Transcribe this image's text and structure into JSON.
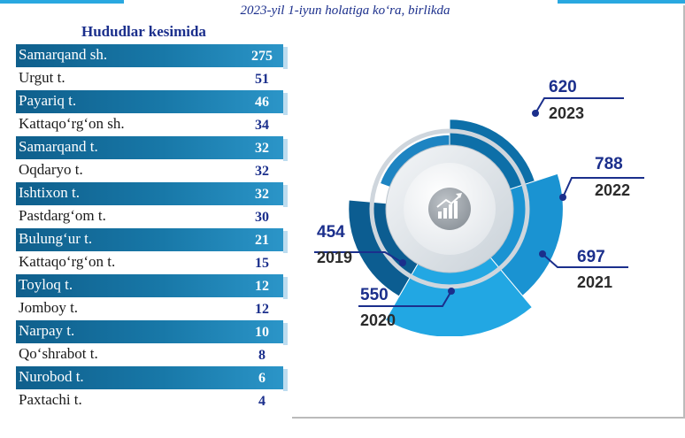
{
  "header": {
    "subtitle": "2023-yil 1-iyun holatiga ko‘ra, birlikda",
    "section_title": "Hududlar kesimida"
  },
  "regions": [
    {
      "name": "Samarqand sh.",
      "value": "275",
      "highlight": true
    },
    {
      "name": "Urgut t.",
      "value": "51",
      "highlight": false
    },
    {
      "name": "Payariq t.",
      "value": "46",
      "highlight": true
    },
    {
      "name": "Kattaqo‘rg‘on sh.",
      "value": "34",
      "highlight": false
    },
    {
      "name": "Samarqand t.",
      "value": "32",
      "highlight": true
    },
    {
      "name": "Oqdaryo t.",
      "value": "32",
      "highlight": false
    },
    {
      "name": "Ishtixon t.",
      "value": "32",
      "highlight": true
    },
    {
      "name": "Pastdarg‘om  t.",
      "value": "30",
      "highlight": false
    },
    {
      "name": "Bulung‘ur t.",
      "value": "21",
      "highlight": true
    },
    {
      "name": "Kattaqo‘rg‘on t.",
      "value": "15",
      "highlight": false
    },
    {
      "name": "Toyloq t.",
      "value": "12",
      "highlight": true
    },
    {
      "name": "Jomboy t.",
      "value": "12",
      "highlight": false
    },
    {
      "name": "Narpay t.",
      "value": "10",
      "highlight": true
    },
    {
      "name": "Qo‘shrabot t.",
      "value": "8",
      "highlight": false
    },
    {
      "name": "Nurobod t.",
      "value": "6",
      "highlight": true
    },
    {
      "name": "Paxtachi t.",
      "value": "4",
      "highlight": false
    }
  ],
  "chart_data": {
    "type": "pie",
    "variant": "polar-area / radial",
    "categories": [
      "2019",
      "2020",
      "2021",
      "2022",
      "2023"
    ],
    "values": [
      454,
      550,
      697,
      788,
      620
    ],
    "colors": [
      "#1d84c2",
      "#0d6fa8",
      "#1a93d2",
      "#22a7e3",
      "#0c5d91"
    ],
    "center_icon": "growth-chart-icon"
  }
}
